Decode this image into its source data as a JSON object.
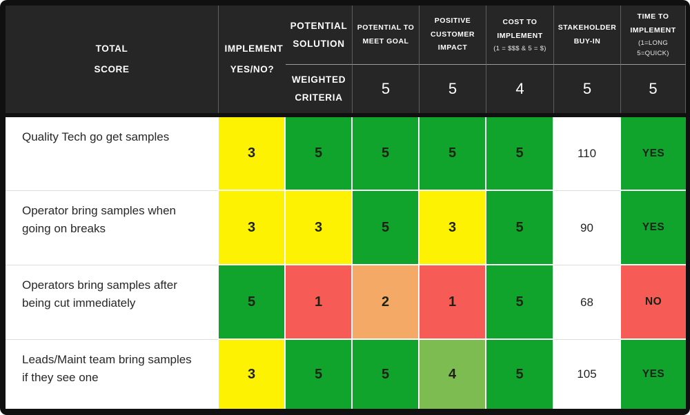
{
  "palette": {
    "yellow": "#fdf201",
    "green": "#10a42d",
    "light_green": "#7dbc50",
    "red": "#f75b55",
    "orange": "#f4a966",
    "header_bg": "#262626",
    "frame": "#101010",
    "cell_white": "#ffffff"
  },
  "chart_data": {
    "type": "table",
    "title": "Solution prioritization decision matrix",
    "columns": [
      {
        "label": "POTENTIAL SOLUTION",
        "sub": ""
      },
      {
        "label": "POTENTIAL TO MEET GOAL",
        "sub": ""
      },
      {
        "label": "POSITIVE CUSTOMER IMPACT",
        "sub": ""
      },
      {
        "label": "COST TO IMPLEMENT",
        "sub": "(1 = $$$ & 5 = $)"
      },
      {
        "label": "STAKEHOLDER BUY-IN",
        "sub": ""
      },
      {
        "label": "TIME TO IMPLEMENT",
        "sub": "(1=LONG 5=QUICK)"
      },
      {
        "label": "TOTAL SCORE",
        "sub": ""
      },
      {
        "label": "IMPLEMENT YES/NO?",
        "sub": ""
      }
    ],
    "weights_label": "WEIGHTED CRITERIA",
    "weights": [
      "5",
      "5",
      "4",
      "5",
      "5"
    ],
    "rows": [
      {
        "solution": "Quality Tech go get samples",
        "scores": [
          {
            "value": "3",
            "color": "yellow"
          },
          {
            "value": "5",
            "color": "green"
          },
          {
            "value": "5",
            "color": "green"
          },
          {
            "value": "5",
            "color": "green"
          },
          {
            "value": "5",
            "color": "green"
          }
        ],
        "total": "110",
        "implement": {
          "value": "YES",
          "color": "green"
        }
      },
      {
        "solution": "Operator bring samples when going on breaks",
        "scores": [
          {
            "value": "3",
            "color": "yellow"
          },
          {
            "value": "3",
            "color": "yellow"
          },
          {
            "value": "5",
            "color": "green"
          },
          {
            "value": "3",
            "color": "yellow"
          },
          {
            "value": "5",
            "color": "green"
          }
        ],
        "total": "90",
        "implement": {
          "value": "YES",
          "color": "green"
        }
      },
      {
        "solution": "Operators bring samples after being cut immediately",
        "scores": [
          {
            "value": "5",
            "color": "green"
          },
          {
            "value": "1",
            "color": "red"
          },
          {
            "value": "2",
            "color": "orange"
          },
          {
            "value": "1",
            "color": "red"
          },
          {
            "value": "5",
            "color": "green"
          }
        ],
        "total": "68",
        "implement": {
          "value": "NO",
          "color": "red"
        }
      },
      {
        "solution": "Leads/Maint team bring samples if they see one",
        "scores": [
          {
            "value": "3",
            "color": "yellow"
          },
          {
            "value": "5",
            "color": "green"
          },
          {
            "value": "5",
            "color": "green"
          },
          {
            "value": "4",
            "color": "light_green"
          },
          {
            "value": "5",
            "color": "green"
          }
        ],
        "total": "105",
        "implement": {
          "value": "YES",
          "color": "green"
        }
      }
    ]
  }
}
